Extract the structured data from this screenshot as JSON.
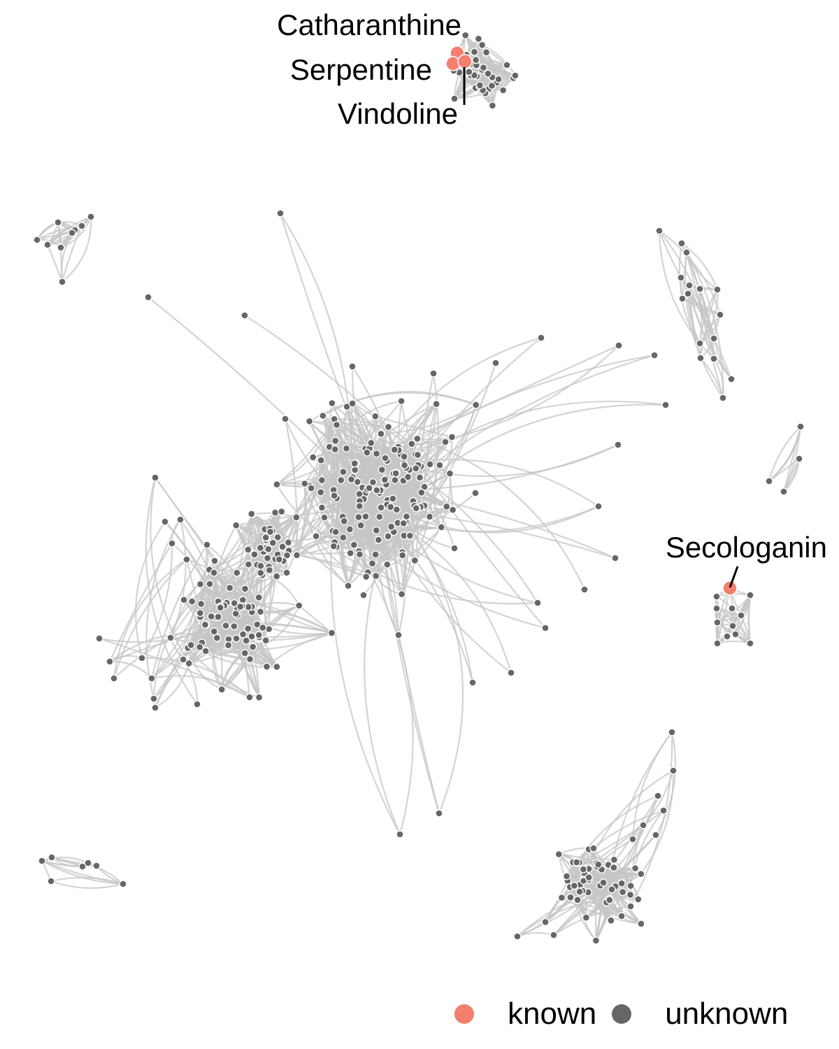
{
  "colors": {
    "known": "#f47f6f",
    "unknown": "#666666",
    "edge": "#c6c6c6",
    "background": "#ffffff",
    "label": "#000000"
  },
  "labels": {
    "catharanthine": "Catharanthine",
    "serpentine": "Serpentine",
    "vindoline": "Vindoline",
    "secologanin": "Secologanin"
  },
  "legend": {
    "known": "known",
    "unknown": "unknown"
  }
}
